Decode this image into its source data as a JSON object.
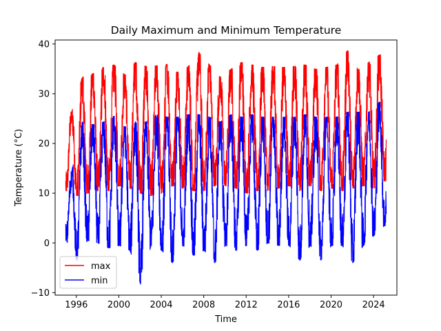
{
  "chart_data": {
    "type": "line",
    "title": "Daily Maximum and Minimum Temperature",
    "xlabel": "Time",
    "ylabel": "Temperature (°C)",
    "xlim": [
      1994.0,
      2026.2
    ],
    "ylim": [
      -10.5,
      40.8
    ],
    "x_ticks": [
      1996,
      2000,
      2004,
      2008,
      2012,
      2016,
      2020,
      2024
    ],
    "y_ticks": [
      -10,
      0,
      10,
      20,
      30,
      40
    ],
    "legend_position": "lower-left",
    "x_range_data": [
      1995.0,
      2025.2
    ],
    "series": [
      {
        "name": "max",
        "color": "#ff0000",
        "annual_peaks": [
          {
            "year": 1995,
            "value": 26.0
          },
          {
            "year": 1996,
            "value": 33.0
          },
          {
            "year": 1997,
            "value": 33.7
          },
          {
            "year": 1998,
            "value": 35.0
          },
          {
            "year": 1999,
            "value": 35.5
          },
          {
            "year": 2000,
            "value": 33.5
          },
          {
            "year": 2001,
            "value": 36.0
          },
          {
            "year": 2002,
            "value": 35.2
          },
          {
            "year": 2003,
            "value": 35.3
          },
          {
            "year": 2004,
            "value": 35.6
          },
          {
            "year": 2005,
            "value": 34.0
          },
          {
            "year": 2006,
            "value": 35.2
          },
          {
            "year": 2007,
            "value": 38.0
          },
          {
            "year": 2008,
            "value": 35.5
          },
          {
            "year": 2009,
            "value": 33.0
          },
          {
            "year": 2010,
            "value": 34.6
          },
          {
            "year": 2011,
            "value": 36.0
          },
          {
            "year": 2012,
            "value": 35.5
          },
          {
            "year": 2013,
            "value": 35.0
          },
          {
            "year": 2014,
            "value": 35.2
          },
          {
            "year": 2015,
            "value": 35.0
          },
          {
            "year": 2016,
            "value": 35.2
          },
          {
            "year": 2017,
            "value": 35.5
          },
          {
            "year": 2018,
            "value": 34.6
          },
          {
            "year": 2019,
            "value": 35.0
          },
          {
            "year": 2020,
            "value": 35.5
          },
          {
            "year": 2021,
            "value": 38.4
          },
          {
            "year": 2022,
            "value": 34.5
          },
          {
            "year": 2023,
            "value": 36.0
          },
          {
            "year": 2024,
            "value": 37.5
          }
        ],
        "annual_troughs": [
          {
            "year": 1995,
            "value": 11.0
          },
          {
            "year": 1996,
            "value": 10.0
          },
          {
            "year": 1997,
            "value": 10.5
          },
          {
            "year": 1998,
            "value": 11.0
          },
          {
            "year": 1999,
            "value": 11.0
          },
          {
            "year": 2000,
            "value": 12.0
          },
          {
            "year": 2001,
            "value": 11.5
          },
          {
            "year": 2002,
            "value": 10.5
          },
          {
            "year": 2003,
            "value": 10.0
          },
          {
            "year": 2004,
            "value": 10.5
          },
          {
            "year": 2005,
            "value": 12.0
          },
          {
            "year": 2006,
            "value": 11.5
          },
          {
            "year": 2007,
            "value": 11.0
          },
          {
            "year": 2008,
            "value": 11.0
          },
          {
            "year": 2009,
            "value": 12.0
          },
          {
            "year": 2010,
            "value": 12.0
          },
          {
            "year": 2011,
            "value": 11.5
          },
          {
            "year": 2012,
            "value": 10.5
          },
          {
            "year": 2013,
            "value": 11.0
          },
          {
            "year": 2014,
            "value": 11.0
          },
          {
            "year": 2015,
            "value": 11.5
          },
          {
            "year": 2016,
            "value": 12.0
          },
          {
            "year": 2017,
            "value": 11.0
          },
          {
            "year": 2018,
            "value": 12.0
          },
          {
            "year": 2019,
            "value": 11.0
          },
          {
            "year": 2020,
            "value": 11.5
          },
          {
            "year": 2021,
            "value": 11.0
          },
          {
            "year": 2022,
            "value": 11.5
          },
          {
            "year": 2023,
            "value": 12.0
          },
          {
            "year": 2024,
            "value": 11.5
          },
          {
            "year": 2025,
            "value": 13.0
          }
        ]
      },
      {
        "name": "min",
        "color": "#0000ff",
        "annual_peaks": [
          {
            "year": 1995,
            "value": 14.0
          },
          {
            "year": 1996,
            "value": 24.0
          },
          {
            "year": 1997,
            "value": 23.5
          },
          {
            "year": 1998,
            "value": 24.0
          },
          {
            "year": 1999,
            "value": 25.2
          },
          {
            "year": 2000,
            "value": 23.0
          },
          {
            "year": 2001,
            "value": 24.0
          },
          {
            "year": 2002,
            "value": 24.0
          },
          {
            "year": 2003,
            "value": 25.5
          },
          {
            "year": 2004,
            "value": 25.0
          },
          {
            "year": 2005,
            "value": 25.0
          },
          {
            "year": 2006,
            "value": 25.5
          },
          {
            "year": 2007,
            "value": 25.5
          },
          {
            "year": 2008,
            "value": 25.0
          },
          {
            "year": 2009,
            "value": 24.0
          },
          {
            "year": 2010,
            "value": 25.5
          },
          {
            "year": 2011,
            "value": 25.0
          },
          {
            "year": 2012,
            "value": 25.5
          },
          {
            "year": 2013,
            "value": 25.0
          },
          {
            "year": 2014,
            "value": 25.0
          },
          {
            "year": 2015,
            "value": 25.0
          },
          {
            "year": 2016,
            "value": 25.0
          },
          {
            "year": 2017,
            "value": 25.5
          },
          {
            "year": 2018,
            "value": 25.0
          },
          {
            "year": 2019,
            "value": 25.0
          },
          {
            "year": 2020,
            "value": 25.0
          },
          {
            "year": 2021,
            "value": 26.0
          },
          {
            "year": 2022,
            "value": 26.0
          },
          {
            "year": 2023,
            "value": 26.0
          },
          {
            "year": 2024,
            "value": 28.0
          }
        ],
        "annual_troughs": [
          {
            "year": 1995,
            "value": 1.0
          },
          {
            "year": 1996,
            "value": -3.0
          },
          {
            "year": 1997,
            "value": 1.0
          },
          {
            "year": 1998,
            "value": 0.5
          },
          {
            "year": 1999,
            "value": -0.5
          },
          {
            "year": 2000,
            "value": 0.0
          },
          {
            "year": 2001,
            "value": -1.0
          },
          {
            "year": 2002,
            "value": -7.8
          },
          {
            "year": 2003,
            "value": 0.0
          },
          {
            "year": 2004,
            "value": -1.0
          },
          {
            "year": 2005,
            "value": -3.5
          },
          {
            "year": 2006,
            "value": 0.0
          },
          {
            "year": 2007,
            "value": -2.0
          },
          {
            "year": 2008,
            "value": -1.0
          },
          {
            "year": 2009,
            "value": -3.5
          },
          {
            "year": 2010,
            "value": 0.0
          },
          {
            "year": 2011,
            "value": -1.0
          },
          {
            "year": 2012,
            "value": 0.0
          },
          {
            "year": 2013,
            "value": -1.0
          },
          {
            "year": 2014,
            "value": 0.5
          },
          {
            "year": 2015,
            "value": 0.0
          },
          {
            "year": 2016,
            "value": 0.0
          },
          {
            "year": 2017,
            "value": -3.0
          },
          {
            "year": 2018,
            "value": 0.0
          },
          {
            "year": 2019,
            "value": -3.0
          },
          {
            "year": 2020,
            "value": 0.0
          },
          {
            "year": 2021,
            "value": 0.0
          },
          {
            "year": 2022,
            "value": -3.5
          },
          {
            "year": 2023,
            "value": 0.0
          },
          {
            "year": 2024,
            "value": 2.0
          },
          {
            "year": 2025,
            "value": 4.0
          }
        ]
      }
    ]
  }
}
